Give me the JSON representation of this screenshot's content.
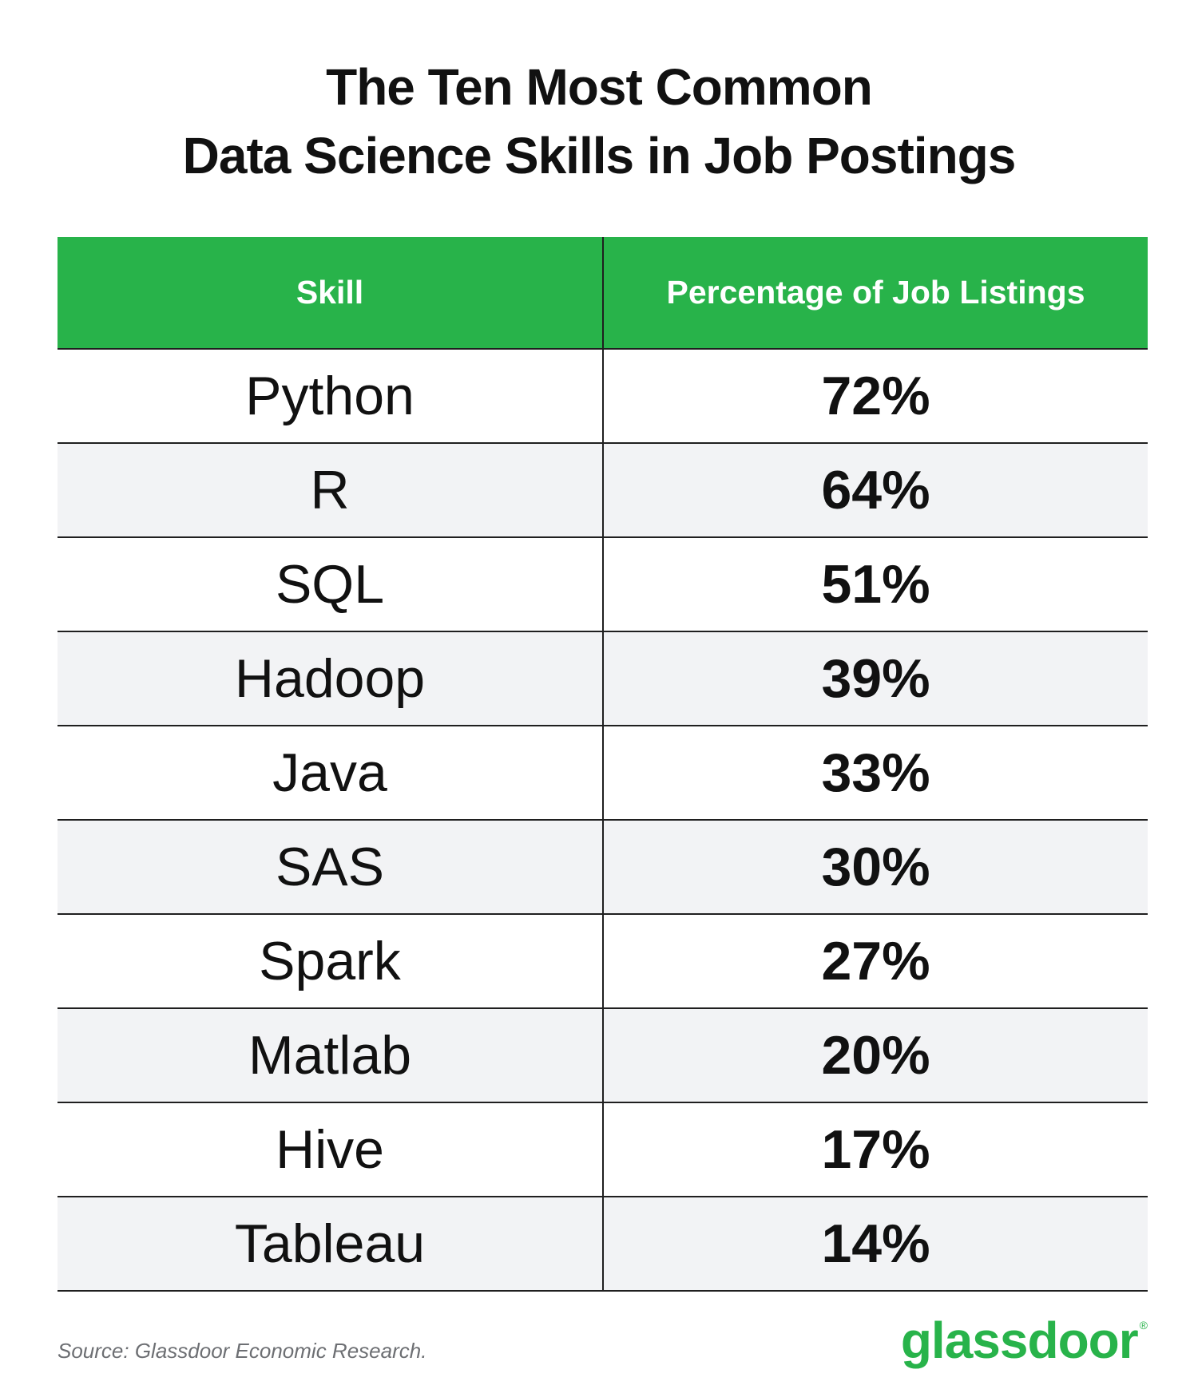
{
  "title_lines": [
    "The Ten Most Common",
    "Data Science Skills in Job Postings"
  ],
  "colors": {
    "header_bg": "#28b34a",
    "header_text": "#ffffff",
    "shaded_row": "#f2f3f5",
    "logo": "#28b34a",
    "source_text": "#6d6f73"
  },
  "chart_data": {
    "type": "table",
    "title": "The Ten Most Common Data Science Skills in Job Postings",
    "columns": [
      "Skill",
      "Percentage of Job Listings"
    ],
    "rows": [
      {
        "skill": "Python",
        "pct": "72%"
      },
      {
        "skill": "R",
        "pct": "64%"
      },
      {
        "skill": "SQL",
        "pct": "51%"
      },
      {
        "skill": "Hadoop",
        "pct": "39%"
      },
      {
        "skill": "Java",
        "pct": "33%"
      },
      {
        "skill": "SAS",
        "pct": "30%"
      },
      {
        "skill": "Spark",
        "pct": "27%"
      },
      {
        "skill": "Matlab",
        "pct": "20%"
      },
      {
        "skill": "Hive",
        "pct": "17%"
      },
      {
        "skill": "Tableau",
        "pct": "14%"
      }
    ]
  },
  "footer": {
    "source": "Source: Glassdoor Economic Research.",
    "logo_text": "glassdoor",
    "logo_mark": "®"
  }
}
